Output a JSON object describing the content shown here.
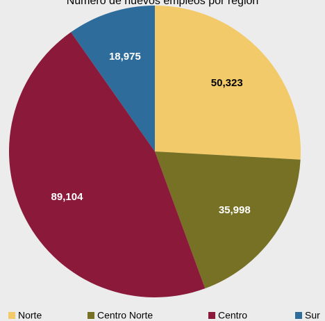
{
  "chart_data": {
    "type": "pie",
    "title": "Número de nuevos empleos por región",
    "categories": [
      "Norte",
      "Centro Norte",
      "Centro",
      "Sur"
    ],
    "values": [
      50323,
      35998,
      89104,
      18975
    ],
    "value_labels": [
      "50,323",
      "35,998",
      "89,104",
      "18,975"
    ],
    "colors": [
      "#f2ca6a",
      "#767124",
      "#8b1a3a",
      "#2e6c9b"
    ],
    "legend": "bottom"
  }
}
